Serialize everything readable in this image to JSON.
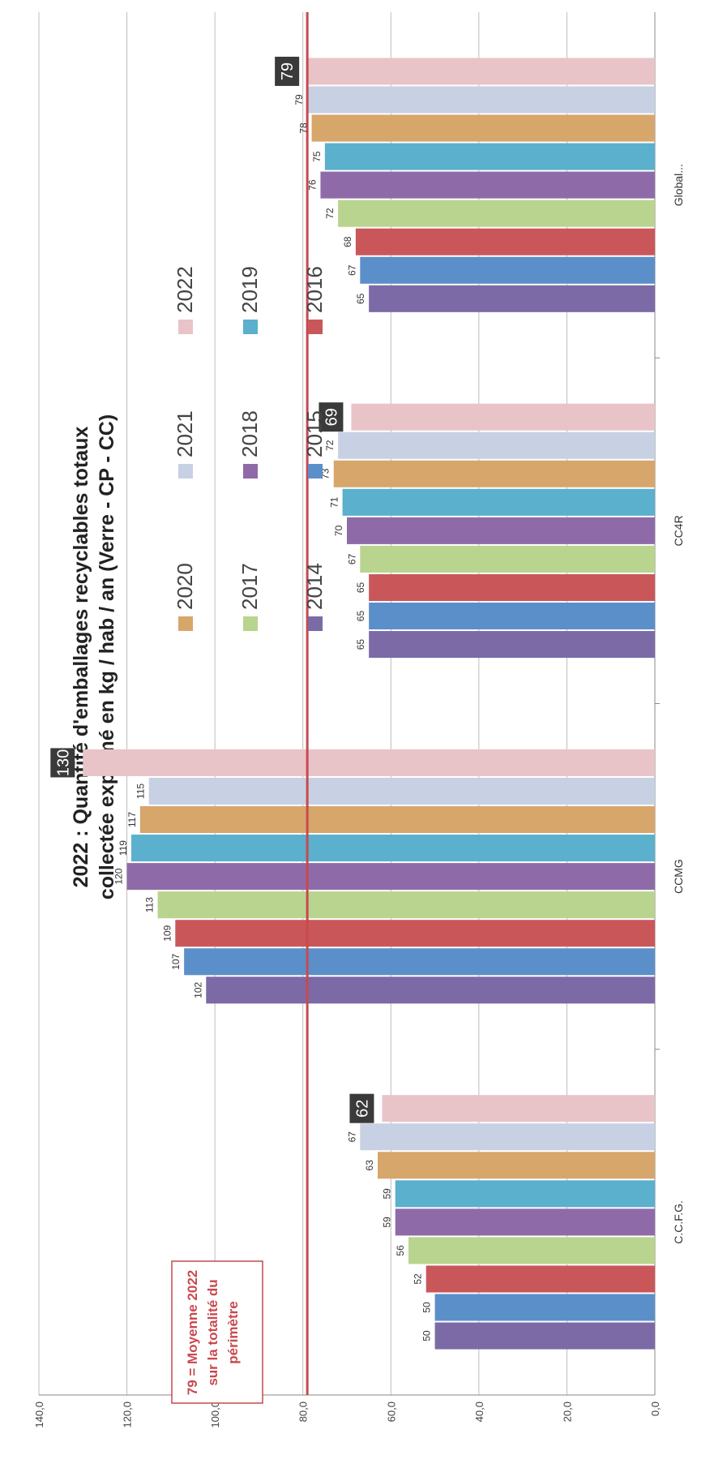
{
  "chart_data": {
    "type": "bar",
    "title_line1": "2022 : Quantité d'emballages recyclables totaux",
    "title_line2": "collectée exprimé  en kg / hab / an (Verre - CP - CC)",
    "categories": [
      "C.C.F.G.",
      "CCMG",
      "CC4R",
      "Global..."
    ],
    "series": [
      {
        "name": "2014",
        "color": "#7b6aa6",
        "values": [
          50,
          102,
          65,
          65
        ]
      },
      {
        "name": "2015",
        "color": "#5b8fc9",
        "values": [
          50,
          107,
          65,
          67
        ]
      },
      {
        "name": "2016",
        "color": "#c9575a",
        "values": [
          52,
          109,
          65,
          68
        ]
      },
      {
        "name": "2017",
        "color": "#b8d48e",
        "values": [
          56,
          113,
          67,
          72
        ]
      },
      {
        "name": "2018",
        "color": "#8e6ba8",
        "values": [
          59,
          120,
          70,
          76
        ]
      },
      {
        "name": "2019",
        "color": "#5ab0cd",
        "values": [
          59,
          119,
          71,
          75
        ]
      },
      {
        "name": "2020",
        "color": "#d7a66b",
        "values": [
          63,
          117,
          73,
          78
        ]
      },
      {
        "name": "2021",
        "color": "#c7d1e3",
        "values": [
          67,
          115,
          72,
          79
        ]
      },
      {
        "name": "2022",
        "color": "#e8c4c8",
        "values": [
          62,
          130,
          69,
          79
        ]
      }
    ],
    "value_labels": [
      [
        "50",
        "50",
        "52",
        "56",
        "59",
        "59",
        "63",
        "67",
        "62"
      ],
      [
        "102",
        "107",
        "109",
        "113",
        "120",
        "119",
        "117",
        "115",
        "130"
      ],
      [
        "65",
        "65",
        "65",
        "67",
        "70",
        "71",
        "73",
        "72",
        "69"
      ],
      [
        "65",
        "67",
        "68",
        "72",
        "76",
        "75",
        "78",
        "79",
        "79"
      ]
    ],
    "yticks": [
      "0,0",
      "20,0",
      "40,0",
      "60,0",
      "80,0",
      "100,0",
      "120,0",
      "140,0"
    ],
    "ylim": [
      0,
      140
    ],
    "average_line": {
      "value": 79,
      "color": "#c9494f"
    },
    "annotation": {
      "line1": "79 = Moyenne 2022",
      "line2": "sur la totalité du",
      "line3": "périmètre"
    },
    "legend_position": "top",
    "grid": true
  }
}
